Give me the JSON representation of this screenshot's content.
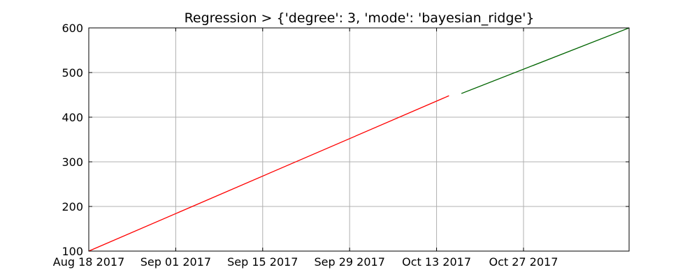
{
  "chart_data": {
    "type": "line",
    "title": "Regression > {'degree': 3, 'mode': 'bayesian_ridge'}",
    "xlabel": "",
    "ylabel": "",
    "x_axis_type": "date",
    "xlim": [
      "2017-08-18",
      "2017-11-13"
    ],
    "ylim": [
      100,
      600
    ],
    "x_ticks": [
      "2017-08-18",
      "2017-09-01",
      "2017-09-15",
      "2017-09-29",
      "2017-10-13",
      "2017-10-27"
    ],
    "x_tick_labels": [
      "Aug 18 2017",
      "Sep 01 2017",
      "Sep 15 2017",
      "Sep 29 2017",
      "Oct 13 2017",
      "Oct 27 2017"
    ],
    "y_ticks": [
      100,
      200,
      300,
      400,
      500,
      600
    ],
    "y_tick_labels": [
      "100",
      "200",
      "300",
      "400",
      "500",
      "600"
    ],
    "grid": true,
    "series": [
      {
        "color": "#ff0000",
        "x": [
          "2017-08-18",
          "2017-10-15"
        ],
        "values": [
          100,
          448
        ]
      },
      {
        "color": "#006400",
        "x": [
          "2017-10-17",
          "2017-11-13"
        ],
        "values": [
          453,
          600
        ]
      }
    ]
  }
}
